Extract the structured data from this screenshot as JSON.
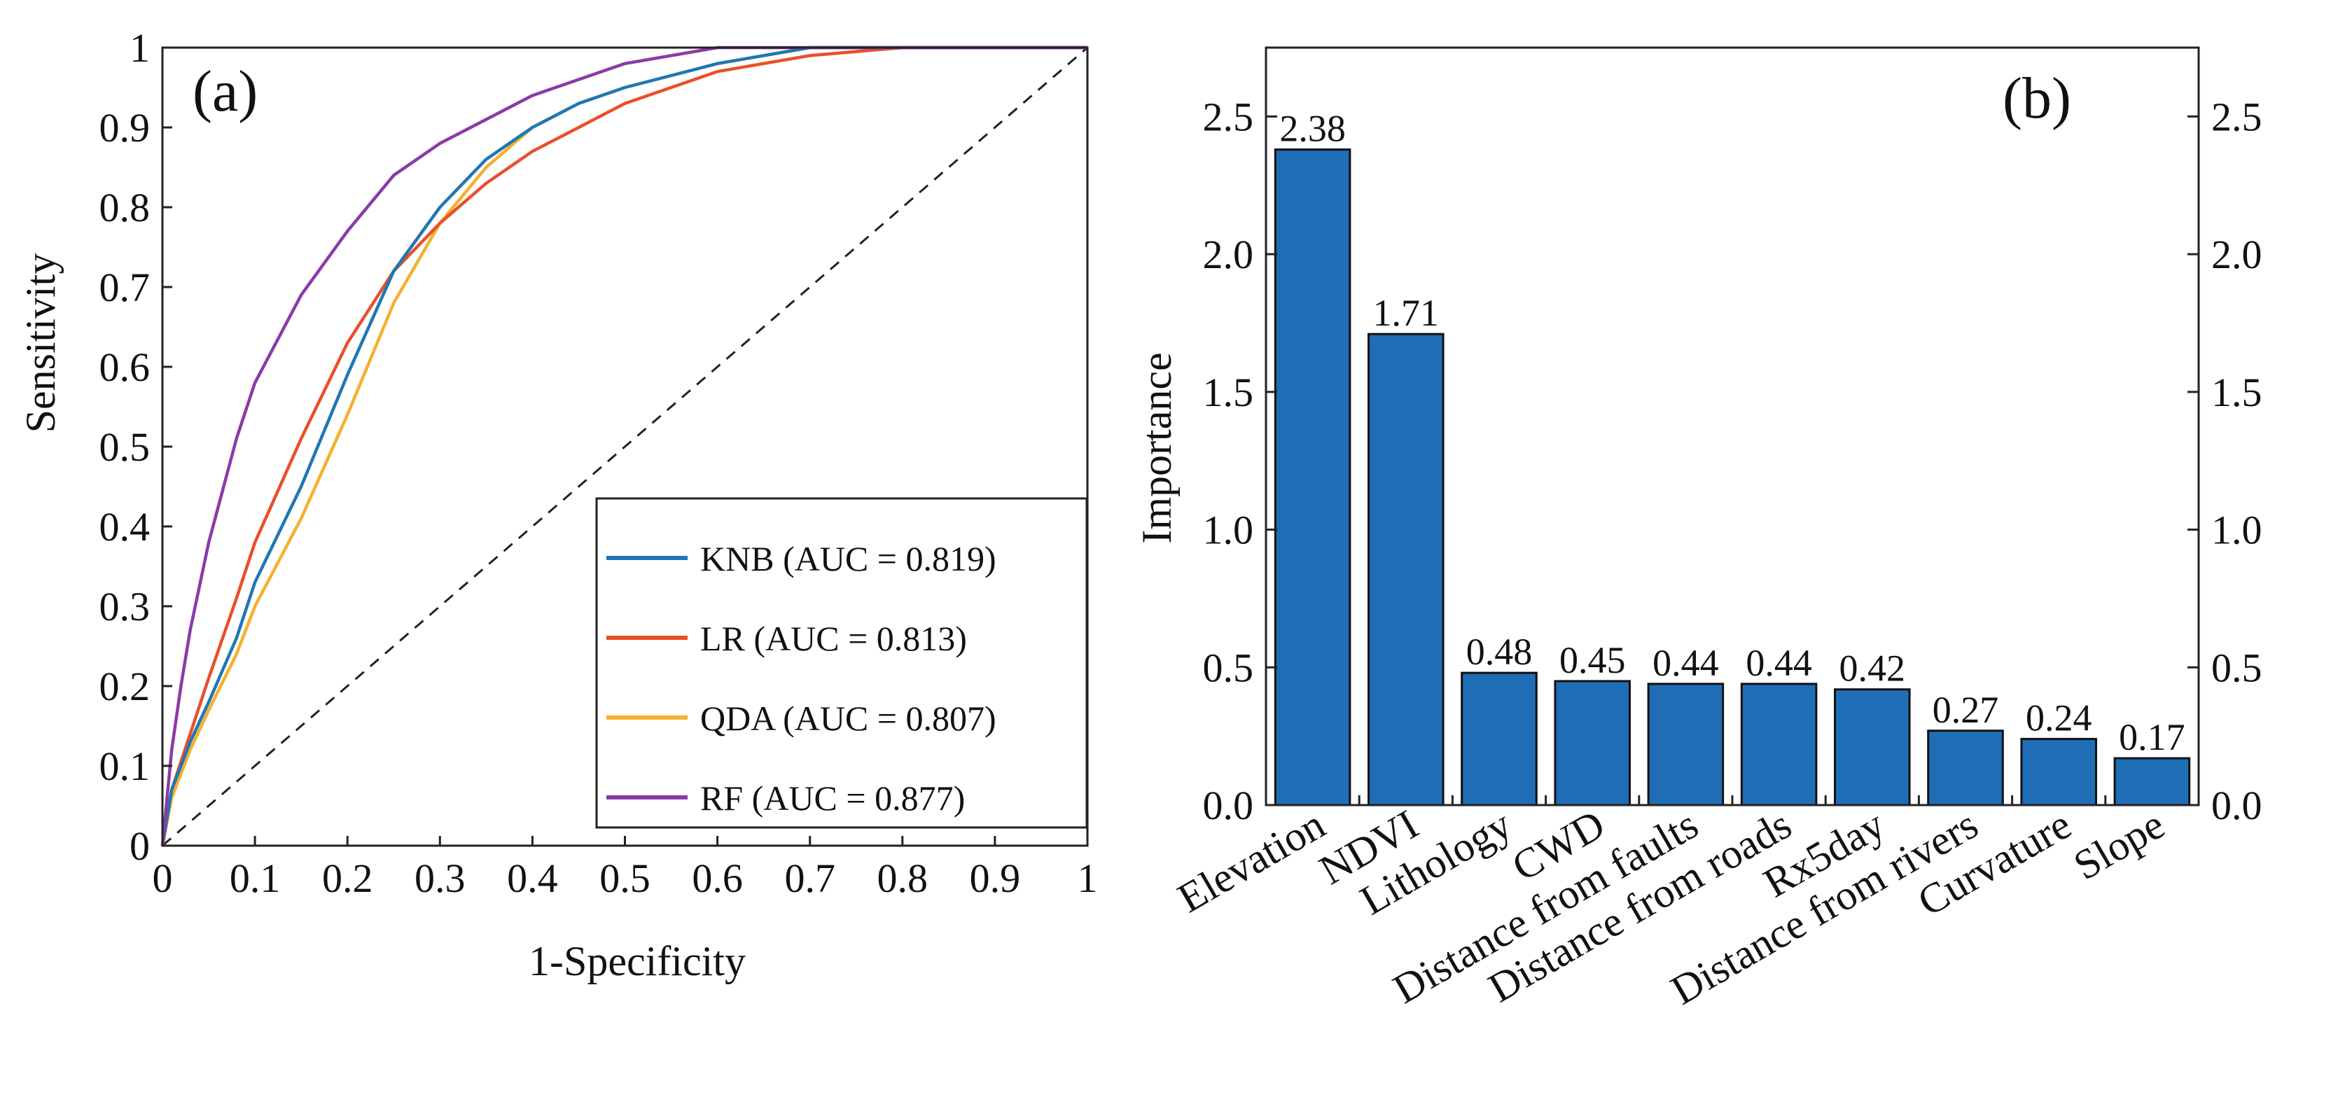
{
  "chart_data": [
    {
      "panel": "(a)",
      "type": "line",
      "title": "",
      "xlabel": "1-Specificity",
      "ylabel": "Sensitivity",
      "xlim": [
        0,
        1
      ],
      "ylim": [
        0,
        1
      ],
      "xticks": [
        "0",
        "0.1",
        "0.2",
        "0.3",
        "0.4",
        "0.5",
        "0.6",
        "0.7",
        "0.8",
        "0.9",
        "1"
      ],
      "yticks": [
        "0",
        "0.1",
        "0.2",
        "0.3",
        "0.4",
        "0.5",
        "0.6",
        "0.7",
        "0.8",
        "0.9",
        "1"
      ],
      "grid": false,
      "legend": "lower-right",
      "reference_line": {
        "x": [
          0,
          1
        ],
        "y": [
          0,
          1
        ],
        "style": "dashed",
        "color": "#222222"
      },
      "series": [
        {
          "name": "KNB (AUC = 0.819)",
          "color": "#1f77b4",
          "x": [
            0,
            0.01,
            0.03,
            0.05,
            0.08,
            0.1,
            0.15,
            0.2,
            0.25,
            0.3,
            0.35,
            0.4,
            0.45,
            0.5,
            0.6,
            0.7,
            0.8,
            0.9,
            1
          ],
          "y": [
            0,
            0.07,
            0.13,
            0.18,
            0.26,
            0.33,
            0.45,
            0.59,
            0.72,
            0.8,
            0.86,
            0.9,
            0.93,
            0.95,
            0.98,
            1,
            1,
            1,
            1
          ]
        },
        {
          "name": "LR (AUC = 0.813)",
          "color": "#e8502a",
          "x": [
            0,
            0.01,
            0.03,
            0.05,
            0.08,
            0.1,
            0.15,
            0.2,
            0.25,
            0.3,
            0.35,
            0.4,
            0.45,
            0.5,
            0.6,
            0.7,
            0.8,
            0.9,
            1
          ],
          "y": [
            0,
            0.07,
            0.14,
            0.21,
            0.31,
            0.38,
            0.51,
            0.63,
            0.72,
            0.78,
            0.83,
            0.87,
            0.9,
            0.93,
            0.97,
            0.99,
            1,
            1,
            1
          ]
        },
        {
          "name": "QDA (AUC = 0.807)",
          "color": "#f5b02e",
          "x": [
            0,
            0.01,
            0.03,
            0.05,
            0.08,
            0.1,
            0.15,
            0.2,
            0.25,
            0.3,
            0.35,
            0.4,
            0.45,
            0.5,
            0.6,
            0.7,
            0.8,
            0.9,
            1
          ],
          "y": [
            0,
            0.06,
            0.12,
            0.17,
            0.24,
            0.3,
            0.41,
            0.54,
            0.68,
            0.78,
            0.85,
            0.9,
            0.93,
            0.95,
            0.98,
            1,
            1,
            1,
            1
          ]
        },
        {
          "name": "RF (AUC = 0.877)",
          "color": "#8b3aa8",
          "x": [
            0,
            0.01,
            0.02,
            0.03,
            0.05,
            0.08,
            0.1,
            0.15,
            0.2,
            0.25,
            0.3,
            0.35,
            0.4,
            0.5,
            0.6,
            0.7,
            0.8,
            0.9,
            1
          ],
          "y": [
            0,
            0.12,
            0.2,
            0.27,
            0.38,
            0.51,
            0.58,
            0.69,
            0.77,
            0.84,
            0.88,
            0.91,
            0.94,
            0.98,
            1,
            1,
            1,
            1,
            1
          ]
        }
      ]
    },
    {
      "panel": "(b)",
      "type": "bar",
      "title": "",
      "xlabel": "",
      "ylabel": "Importance",
      "ylim": [
        0,
        2.75
      ],
      "yticks": [
        "0.0",
        "0.5",
        "1.0",
        "1.5",
        "2.0",
        "2.5"
      ],
      "right_axis_ticks": [
        "0.0",
        "0.5",
        "1.0",
        "1.5",
        "2.0",
        "2.5"
      ],
      "grid": false,
      "bar_color": "#1f6db5",
      "categories": [
        "Elevation",
        "NDVI",
        "Lithology",
        "CWD",
        "Distance from faults",
        "Distance from roads",
        "Rx5day",
        "Distance from rivers",
        "Curvature",
        "Slope"
      ],
      "values": [
        2.38,
        1.71,
        0.48,
        0.45,
        0.44,
        0.44,
        0.42,
        0.27,
        0.24,
        0.17
      ],
      "value_labels": [
        "2.38",
        "1.71",
        "0.48",
        "0.45",
        "0.44",
        "0.44",
        "0.42",
        "0.27",
        "0.24",
        "0.17"
      ]
    }
  ]
}
